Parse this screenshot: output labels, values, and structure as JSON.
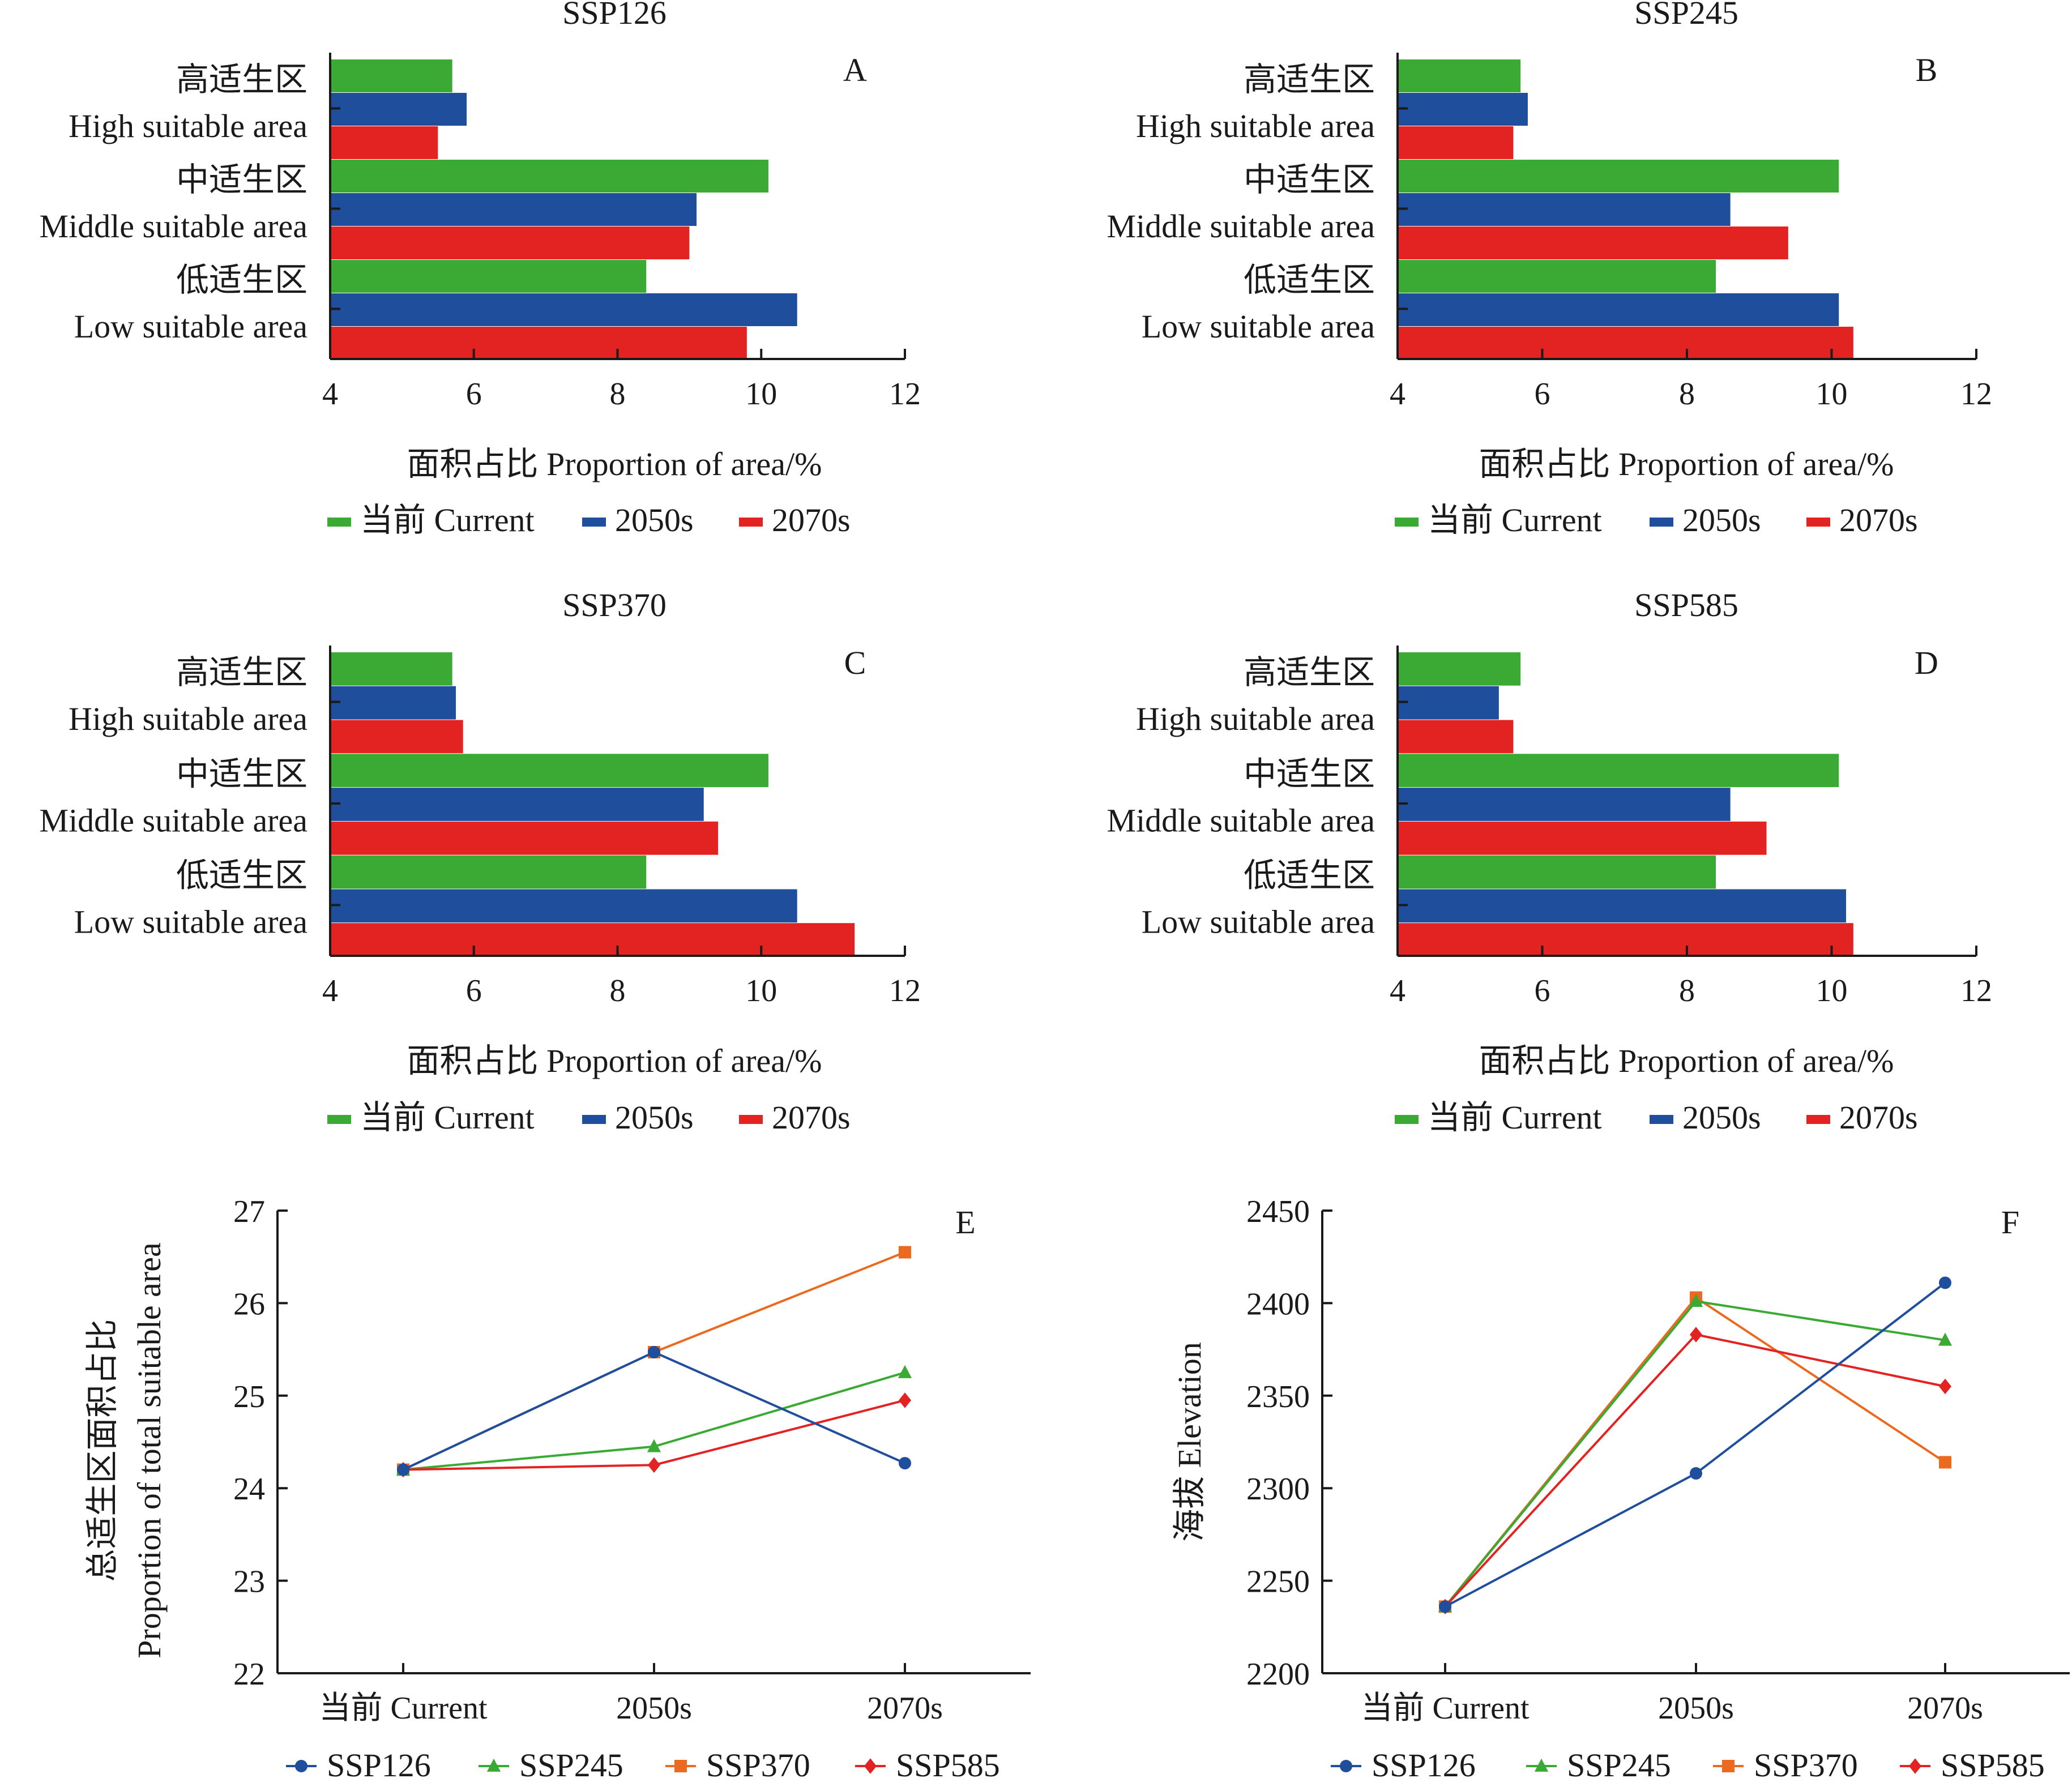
{
  "colors": {
    "current": "#3aaa35",
    "y2050": "#1f4e9c",
    "y2070": "#e32222",
    "ssp126": "#1f4e9c",
    "ssp245": "#3aaa35",
    "ssp370": "#ec6a1f",
    "ssp585": "#e32222"
  },
  "bar_legend": [
    "当前 Current",
    "2050s",
    "2070s"
  ],
  "line_legend": [
    "SSP126",
    "SSP245",
    "SSP370",
    "SSP585"
  ],
  "chart_data": [
    {
      "id": "A",
      "letter": "A",
      "type": "bar",
      "title": "SSP126",
      "categories": [
        {
          "cn": "高适生区",
          "en": "High suitable area"
        },
        {
          "cn": "中适生区",
          "en": "Middle suitable area"
        },
        {
          "cn": "低适生区",
          "en": "Low suitable area"
        }
      ],
      "series": [
        {
          "name": "当前 Current",
          "values": [
            5.7,
            10.1,
            8.4
          ]
        },
        {
          "name": "2050s",
          "values": [
            5.9,
            9.1,
            10.5
          ]
        },
        {
          "name": "2070s",
          "values": [
            5.5,
            9.0,
            9.8
          ]
        }
      ],
      "xlim": [
        4,
        12
      ],
      "xticks": [
        "4",
        "6",
        "8",
        "10",
        "12"
      ],
      "xlabel": "面积占比 Proportion of area/%"
    },
    {
      "id": "B",
      "letter": "B",
      "type": "bar",
      "title": "SSP245",
      "categories": [
        {
          "cn": "高适生区",
          "en": "High suitable area"
        },
        {
          "cn": "中适生区",
          "en": "Middle suitable area"
        },
        {
          "cn": "低适生区",
          "en": "Low suitable area"
        }
      ],
      "series": [
        {
          "name": "当前 Current",
          "values": [
            5.7,
            10.1,
            8.4
          ]
        },
        {
          "name": "2050s",
          "values": [
            5.8,
            8.6,
            10.1
          ]
        },
        {
          "name": "2070s",
          "values": [
            5.6,
            9.4,
            10.3
          ]
        }
      ],
      "xlim": [
        4,
        12
      ],
      "xticks": [
        "4",
        "6",
        "8",
        "10",
        "12"
      ],
      "xlabel": "面积占比 Proportion of area/%"
    },
    {
      "id": "C",
      "letter": "C",
      "type": "bar",
      "title": "SSP370",
      "categories": [
        {
          "cn": "高适生区",
          "en": "High suitable area"
        },
        {
          "cn": "中适生区",
          "en": "Middle suitable area"
        },
        {
          "cn": "低适生区",
          "en": "Low suitable area"
        }
      ],
      "series": [
        {
          "name": "当前 Current",
          "values": [
            5.7,
            10.1,
            8.4
          ]
        },
        {
          "name": "2050s",
          "values": [
            5.75,
            9.2,
            10.5
          ]
        },
        {
          "name": "2070s",
          "values": [
            5.85,
            9.4,
            11.3
          ]
        }
      ],
      "xlim": [
        4,
        12
      ],
      "xticks": [
        "4",
        "6",
        "8",
        "10",
        "12"
      ],
      "xlabel": "面积占比 Proportion of area/%"
    },
    {
      "id": "D",
      "letter": "D",
      "type": "bar",
      "title": "SSP585",
      "categories": [
        {
          "cn": "高适生区",
          "en": "High suitable area"
        },
        {
          "cn": "中适生区",
          "en": "Middle suitable area"
        },
        {
          "cn": "低适生区",
          "en": "Low suitable area"
        }
      ],
      "series": [
        {
          "name": "当前 Current",
          "values": [
            5.7,
            10.1,
            8.4
          ]
        },
        {
          "name": "2050s",
          "values": [
            5.4,
            8.6,
            10.2
          ]
        },
        {
          "name": "2070s",
          "values": [
            5.6,
            9.1,
            10.3
          ]
        }
      ],
      "xlim": [
        4,
        12
      ],
      "xticks": [
        "4",
        "6",
        "8",
        "10",
        "12"
      ],
      "xlabel": "面积占比 Proportion of area/%"
    },
    {
      "id": "E",
      "letter": "E",
      "type": "line",
      "categories": [
        "当前 Current",
        "2050s",
        "2070s"
      ],
      "series": [
        {
          "name": "SSP126",
          "values": [
            24.2,
            25.47,
            24.27
          ]
        },
        {
          "name": "SSP245",
          "values": [
            24.2,
            24.45,
            25.25
          ]
        },
        {
          "name": "SSP370",
          "values": [
            24.2,
            25.47,
            26.55
          ]
        },
        {
          "name": "SSP585",
          "values": [
            24.2,
            24.25,
            24.95
          ]
        }
      ],
      "ylim": [
        22,
        27
      ],
      "yticks": [
        "22",
        "23",
        "24",
        "25",
        "26",
        "27"
      ],
      "ylabel": [
        "总适生区面积占比",
        "Proportion of total suitable area"
      ]
    },
    {
      "id": "F",
      "letter": "F",
      "type": "line",
      "categories": [
        "当前 Current",
        "2050s",
        "2070s"
      ],
      "series": [
        {
          "name": "SSP126",
          "values": [
            2236,
            2308,
            2411
          ]
        },
        {
          "name": "SSP245",
          "values": [
            2236,
            2401,
            2380
          ]
        },
        {
          "name": "SSP370",
          "values": [
            2236,
            2403,
            2314
          ]
        },
        {
          "name": "SSP585",
          "values": [
            2236,
            2383,
            2355
          ]
        }
      ],
      "ylim": [
        2200,
        2450
      ],
      "yticks": [
        "2200",
        "2250",
        "2300",
        "2350",
        "2400",
        "2450"
      ],
      "ylabel": [
        "海拔 Elevation"
      ]
    }
  ]
}
